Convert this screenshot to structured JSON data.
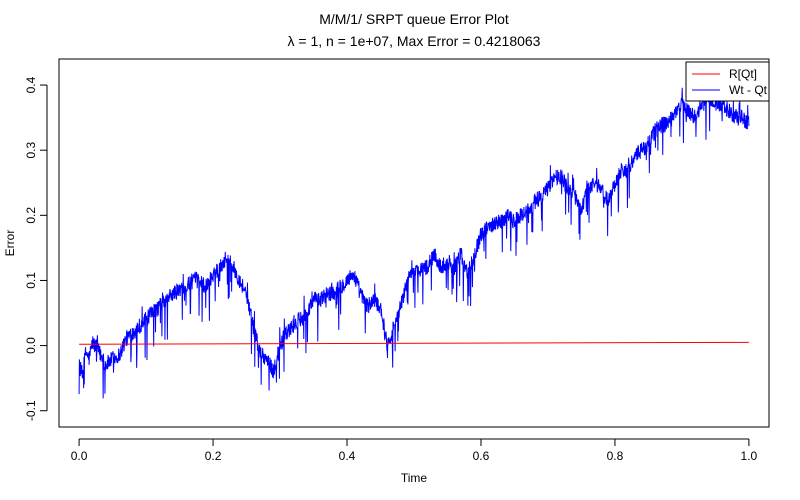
{
  "chart_data": {
    "type": "line",
    "title": "M/M/1/ SRPT queue Error Plot",
    "subtitle_symbol": "λ",
    "subtitle_rest": " = 1, n = 1e+07, Max Error = 0.4218063",
    "xlabel": "Time",
    "ylabel": "Error",
    "xlim": [
      -0.03,
      1.03
    ],
    "ylim": [
      -0.125,
      0.44
    ],
    "xticks": [
      0.0,
      0.2,
      0.4,
      0.6,
      0.8,
      1.0
    ],
    "xtick_labels": [
      "0.0",
      "0.2",
      "0.4",
      "0.6",
      "0.8",
      "1.0"
    ],
    "yticks": [
      -0.1,
      0.0,
      0.1,
      0.2,
      0.3,
      0.4
    ],
    "ytick_labels": [
      "-0.1",
      "0.0",
      "0.1",
      "0.2",
      "0.3",
      "0.4"
    ],
    "grid": false,
    "legend_position": "top-right",
    "series": [
      {
        "name": "R[Qt]",
        "color": "#ff0000",
        "x": [
          0.0,
          1.0
        ],
        "y": [
          0.002,
          0.005
        ]
      },
      {
        "name": "Wt - Qt",
        "color": "#0000ff",
        "x": [
          0.0,
          0.005,
          0.01,
          0.015,
          0.02,
          0.03,
          0.04,
          0.05,
          0.06,
          0.07,
          0.08,
          0.09,
          0.1,
          0.11,
          0.12,
          0.13,
          0.14,
          0.15,
          0.16,
          0.17,
          0.18,
          0.19,
          0.2,
          0.21,
          0.22,
          0.23,
          0.24,
          0.25,
          0.26,
          0.27,
          0.28,
          0.29,
          0.3,
          0.31,
          0.32,
          0.33,
          0.34,
          0.35,
          0.36,
          0.37,
          0.38,
          0.39,
          0.4,
          0.41,
          0.42,
          0.43,
          0.44,
          0.45,
          0.46,
          0.47,
          0.48,
          0.49,
          0.5,
          0.51,
          0.52,
          0.53,
          0.54,
          0.55,
          0.56,
          0.57,
          0.58,
          0.59,
          0.6,
          0.61,
          0.62,
          0.63,
          0.64,
          0.65,
          0.66,
          0.67,
          0.68,
          0.69,
          0.7,
          0.71,
          0.72,
          0.73,
          0.74,
          0.75,
          0.76,
          0.77,
          0.78,
          0.79,
          0.8,
          0.81,
          0.82,
          0.83,
          0.84,
          0.85,
          0.86,
          0.87,
          0.88,
          0.89,
          0.9,
          0.91,
          0.92,
          0.93,
          0.94,
          0.95,
          0.96,
          0.97,
          0.98,
          0.99,
          1.0
        ],
        "y": [
          -0.03,
          -0.045,
          -0.01,
          -0.02,
          0.005,
          -0.01,
          -0.03,
          -0.02,
          -0.015,
          0.01,
          0.02,
          0.03,
          0.04,
          0.05,
          0.06,
          0.07,
          0.08,
          0.085,
          0.09,
          0.1,
          0.1,
          0.09,
          0.11,
          0.12,
          0.135,
          0.12,
          0.1,
          0.08,
          0.03,
          -0.01,
          -0.02,
          -0.04,
          0.0,
          0.02,
          0.03,
          0.04,
          0.05,
          0.07,
          0.07,
          0.08,
          0.08,
          0.09,
          0.1,
          0.11,
          0.08,
          0.06,
          0.07,
          0.06,
          0.0,
          0.03,
          0.06,
          0.1,
          0.11,
          0.12,
          0.12,
          0.14,
          0.12,
          0.13,
          0.12,
          0.14,
          0.11,
          0.14,
          0.17,
          0.18,
          0.19,
          0.19,
          0.2,
          0.19,
          0.2,
          0.21,
          0.22,
          0.23,
          0.24,
          0.26,
          0.26,
          0.24,
          0.23,
          0.21,
          0.24,
          0.25,
          0.24,
          0.22,
          0.25,
          0.27,
          0.27,
          0.29,
          0.3,
          0.31,
          0.33,
          0.34,
          0.34,
          0.36,
          0.37,
          0.36,
          0.35,
          0.37,
          0.38,
          0.37,
          0.37,
          0.36,
          0.35,
          0.35,
          0.34
        ]
      }
    ]
  }
}
